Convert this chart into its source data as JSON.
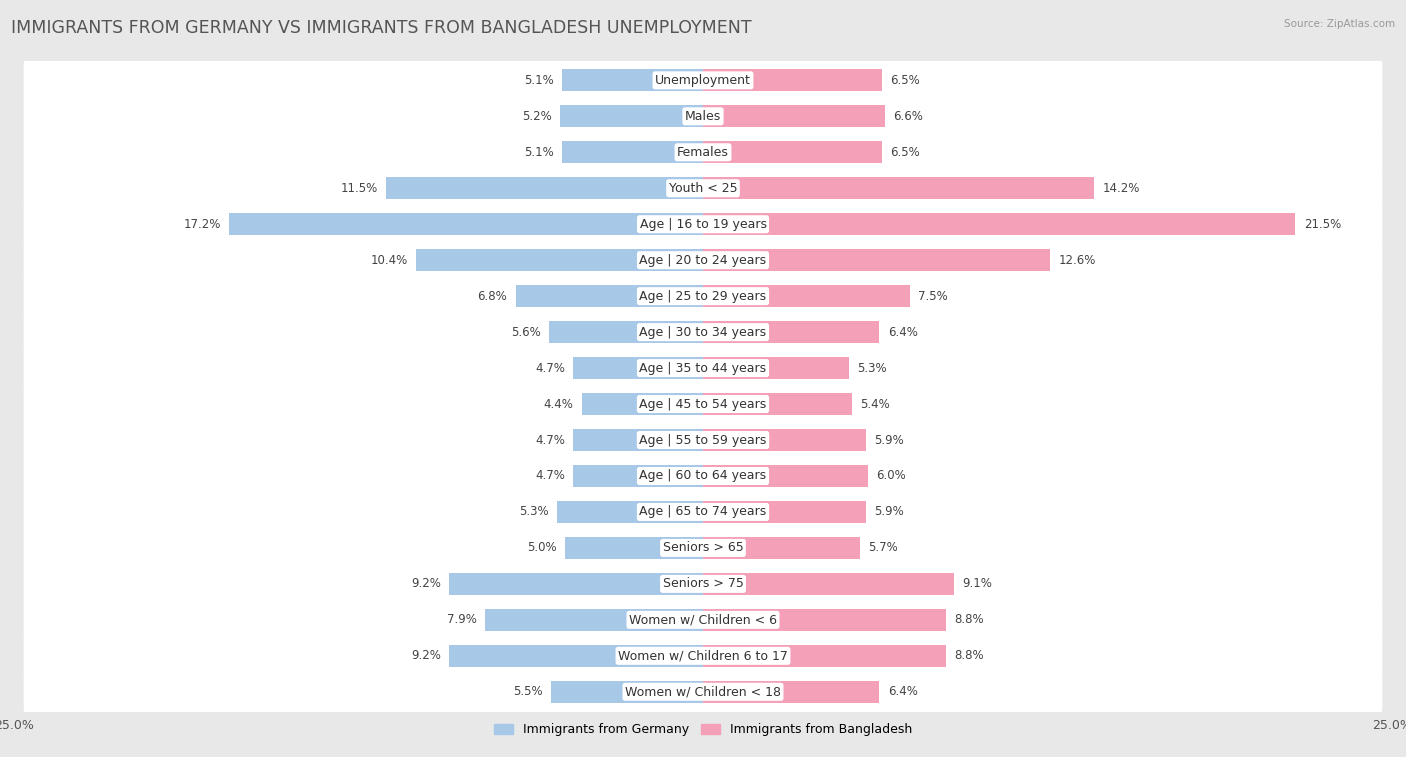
{
  "title": "IMMIGRANTS FROM GERMANY VS IMMIGRANTS FROM BANGLADESH UNEMPLOYMENT",
  "source": "Source: ZipAtlas.com",
  "categories": [
    "Unemployment",
    "Males",
    "Females",
    "Youth < 25",
    "Age | 16 to 19 years",
    "Age | 20 to 24 years",
    "Age | 25 to 29 years",
    "Age | 30 to 34 years",
    "Age | 35 to 44 years",
    "Age | 45 to 54 years",
    "Age | 55 to 59 years",
    "Age | 60 to 64 years",
    "Age | 65 to 74 years",
    "Seniors > 65",
    "Seniors > 75",
    "Women w/ Children < 6",
    "Women w/ Children 6 to 17",
    "Women w/ Children < 18"
  ],
  "germany_values": [
    5.1,
    5.2,
    5.1,
    11.5,
    17.2,
    10.4,
    6.8,
    5.6,
    4.7,
    4.4,
    4.7,
    4.7,
    5.3,
    5.0,
    9.2,
    7.9,
    9.2,
    5.5
  ],
  "bangladesh_values": [
    6.5,
    6.6,
    6.5,
    14.2,
    21.5,
    12.6,
    7.5,
    6.4,
    5.3,
    5.4,
    5.9,
    6.0,
    5.9,
    5.7,
    9.1,
    8.8,
    8.8,
    6.4
  ],
  "germany_color": "#a8c8e8",
  "bangladesh_color": "#f4a0b8",
  "bar_height": 0.62,
  "background_color": "#e8e8e8",
  "row_bg_color": "#ffffff",
  "axis_limit": 25.0,
  "title_fontsize": 12.5,
  "label_fontsize": 9,
  "value_fontsize": 8.5,
  "legend_label_germany": "Immigrants from Germany",
  "legend_label_bangladesh": "Immigrants from Bangladesh"
}
